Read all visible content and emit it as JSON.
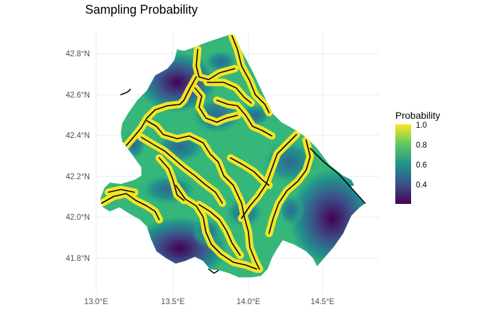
{
  "title": "Sampling Probability",
  "axes": {
    "x_ticks": [
      "13.0°E",
      "13.5°E",
      "14.0°E",
      "14.5°E"
    ],
    "y_ticks": [
      "42.8°N",
      "42.6°N",
      "42.4°N",
      "42.2°N",
      "42.0°N",
      "41.8°N"
    ]
  },
  "legend": {
    "title": "Probability",
    "labels": [
      "1.0",
      "0.8",
      "0.6",
      "0.4"
    ],
    "colors": [
      "#440154",
      "#3b528b",
      "#21918c",
      "#5ec962",
      "#fde725"
    ]
  },
  "colors": {
    "grid": "#ebebeb",
    "river": "#000000",
    "high": "#fde725",
    "mid": "#21918c",
    "low": "#440154"
  }
}
